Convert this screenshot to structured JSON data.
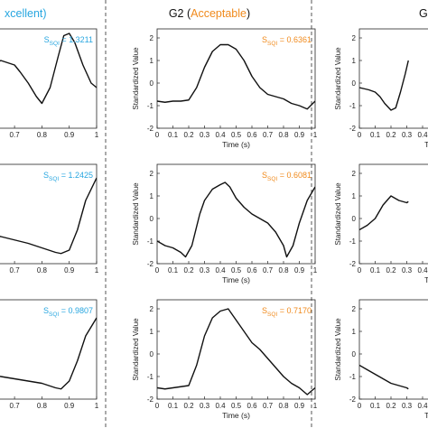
{
  "groups": [
    {
      "title_prefix": "",
      "title_quality": "xcellent)",
      "title_suffix": "",
      "quality_color": "#27a6e0"
    },
    {
      "title_prefix": "G2 (",
      "title_quality": "Acceptable",
      "title_suffix": ")",
      "quality_color": "#f08a1c"
    },
    {
      "title_prefix": "G",
      "title_quality": "",
      "title_suffix": "",
      "quality_color": "#222222"
    }
  ],
  "y_axis_label": "Standardized Value",
  "x_axis_label": "Time (s)",
  "x_tick_labels": [
    "0",
    "0.1",
    "0.2",
    "0.3",
    "0.4",
    "0.5",
    "0.6",
    "0.7",
    "0.8",
    "0.9",
    "1"
  ],
  "y_tick_labels": [
    "-2",
    "-1",
    "0",
    "1",
    "2"
  ],
  "chart_data": {
    "type": "line",
    "xlabel": "Time (s)",
    "ylabel": "Standardized Value",
    "xlim": [
      0,
      1
    ],
    "ylim": [
      -2,
      2.4
    ],
    "grid": false,
    "panels": [
      {
        "group": 0,
        "row": 0,
        "sqi_prefix": "S",
        "sqi_sub": "SQI",
        "sqi_value": " = 1.3211",
        "sqi_color": "#27a6e0",
        "x": [
          0.5,
          0.55,
          0.6,
          0.65,
          0.7,
          0.72,
          0.75,
          0.78,
          0.8,
          0.83,
          0.86,
          0.88,
          0.9,
          0.92,
          0.95,
          0.98,
          1.0
        ],
        "y": [
          0.3,
          0.45,
          0.7,
          1.0,
          0.8,
          0.5,
          0.0,
          -0.6,
          -0.9,
          -0.2,
          1.2,
          2.1,
          2.2,
          1.8,
          0.8,
          0.0,
          -0.2
        ]
      },
      {
        "group": 0,
        "row": 1,
        "sqi_prefix": "S",
        "sqi_sub": "SQI",
        "sqi_value": " = 1.2425",
        "sqi_color": "#27a6e0",
        "x": [
          0.5,
          0.55,
          0.6,
          0.65,
          0.7,
          0.75,
          0.8,
          0.85,
          0.87,
          0.9,
          0.93,
          0.96,
          1.0
        ],
        "y": [
          -0.5,
          -0.6,
          -0.7,
          -0.8,
          -0.95,
          -1.1,
          -1.3,
          -1.5,
          -1.55,
          -1.4,
          -0.5,
          0.8,
          1.8
        ]
      },
      {
        "group": 0,
        "row": 2,
        "sqi_prefix": "S",
        "sqi_sub": "SQI",
        "sqi_value": " = 0.9807",
        "sqi_color": "#27a6e0",
        "x": [
          0.5,
          0.55,
          0.6,
          0.65,
          0.7,
          0.75,
          0.8,
          0.85,
          0.87,
          0.9,
          0.93,
          0.96,
          1.0
        ],
        "y": [
          -0.6,
          -0.75,
          -0.9,
          -1.0,
          -1.1,
          -1.2,
          -1.3,
          -1.5,
          -1.55,
          -1.2,
          -0.3,
          0.8,
          1.6
        ]
      },
      {
        "group": 1,
        "row": 0,
        "sqi_prefix": "S",
        "sqi_sub": "SQI",
        "sqi_value": " = 0.6361",
        "sqi_color": "#f08a1c",
        "x": [
          0,
          0.05,
          0.1,
          0.15,
          0.2,
          0.25,
          0.3,
          0.35,
          0.4,
          0.45,
          0.5,
          0.55,
          0.6,
          0.65,
          0.7,
          0.75,
          0.8,
          0.85,
          0.9,
          0.95,
          1.0
        ],
        "y": [
          -0.8,
          -0.85,
          -0.8,
          -0.8,
          -0.75,
          -0.2,
          0.7,
          1.4,
          1.7,
          1.7,
          1.5,
          1.0,
          0.3,
          -0.2,
          -0.5,
          -0.6,
          -0.7,
          -0.9,
          -1.0,
          -1.15,
          -0.8
        ]
      },
      {
        "group": 1,
        "row": 1,
        "sqi_prefix": "S",
        "sqi_sub": "SQI",
        "sqi_value": " = 0.6081",
        "sqi_color": "#f08a1c",
        "x": [
          0,
          0.05,
          0.1,
          0.15,
          0.18,
          0.22,
          0.27,
          0.3,
          0.35,
          0.4,
          0.43,
          0.46,
          0.5,
          0.55,
          0.6,
          0.65,
          0.7,
          0.75,
          0.8,
          0.82,
          0.86,
          0.9,
          0.95,
          1.0
        ],
        "y": [
          -1.0,
          -1.2,
          -1.3,
          -1.5,
          -1.7,
          -1.2,
          0.2,
          0.8,
          1.3,
          1.5,
          1.6,
          1.4,
          0.9,
          0.5,
          0.2,
          0.0,
          -0.2,
          -0.6,
          -1.2,
          -1.7,
          -1.2,
          -0.2,
          0.8,
          1.4
        ]
      },
      {
        "group": 1,
        "row": 2,
        "sqi_prefix": "S",
        "sqi_sub": "SQI",
        "sqi_value": " = 0.7170",
        "sqi_color": "#f08a1c",
        "x": [
          0,
          0.05,
          0.1,
          0.15,
          0.2,
          0.25,
          0.3,
          0.35,
          0.4,
          0.45,
          0.5,
          0.55,
          0.6,
          0.65,
          0.7,
          0.75,
          0.8,
          0.85,
          0.9,
          0.95,
          1.0
        ],
        "y": [
          -1.5,
          -1.55,
          -1.5,
          -1.45,
          -1.4,
          -0.5,
          0.8,
          1.6,
          1.9,
          2.0,
          1.5,
          1.0,
          0.5,
          0.2,
          -0.2,
          -0.6,
          -1.0,
          -1.3,
          -1.5,
          -1.8,
          -1.5
        ]
      },
      {
        "group": 2,
        "row": 0,
        "sqi_prefix": "",
        "sqi_sub": "",
        "sqi_value": "",
        "sqi_color": "#222222",
        "x": [
          0,
          0.03,
          0.06,
          0.1,
          0.13,
          0.16,
          0.2,
          0.23,
          0.26,
          0.29,
          0.31
        ],
        "y": [
          -0.2,
          -0.25,
          -0.3,
          -0.4,
          -0.6,
          -0.9,
          -1.2,
          -1.1,
          -0.4,
          0.4,
          1.0
        ]
      },
      {
        "group": 2,
        "row": 1,
        "sqi_prefix": "",
        "sqi_sub": "",
        "sqi_value": "",
        "sqi_color": "#222222",
        "x": [
          0,
          0.05,
          0.1,
          0.15,
          0.2,
          0.25,
          0.3,
          0.31
        ],
        "y": [
          -0.5,
          -0.3,
          0.0,
          0.6,
          1.0,
          0.8,
          0.7,
          0.75
        ]
      },
      {
        "group": 2,
        "row": 2,
        "sqi_prefix": "",
        "sqi_sub": "",
        "sqi_value": "",
        "sqi_color": "#222222",
        "x": [
          0,
          0.05,
          0.1,
          0.15,
          0.2,
          0.25,
          0.3,
          0.31
        ],
        "y": [
          -0.5,
          -0.7,
          -0.9,
          -1.1,
          -1.3,
          -1.4,
          -1.5,
          -1.55
        ]
      }
    ]
  }
}
